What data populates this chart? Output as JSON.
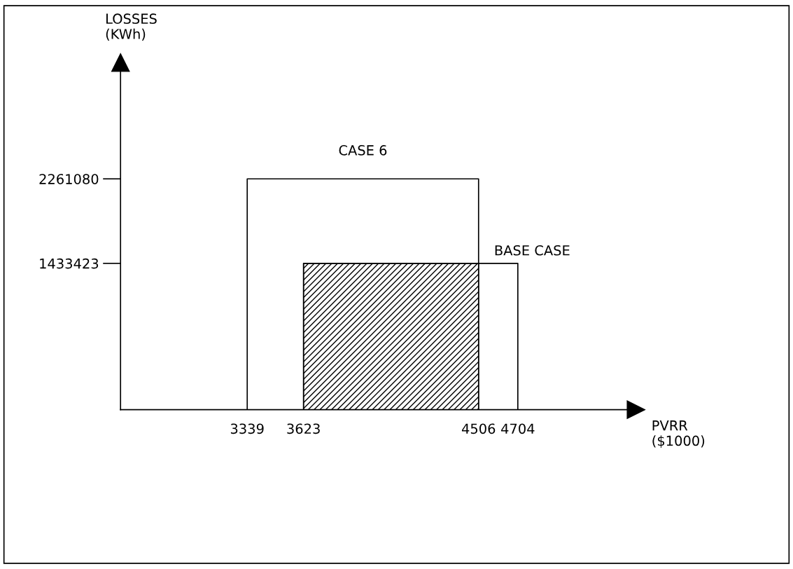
{
  "chart_data": {
    "type": "line",
    "xlabel": "PVRR\n($1000)",
    "ylabel": "LOSSES\n(KWh)",
    "series": [
      {
        "name": "CASE 6",
        "color": "#000000",
        "x": [
          3339,
          3339,
          4506,
          4506
        ],
        "values": [
          0,
          2261080,
          2261080,
          0
        ]
      },
      {
        "name": "BASE CASE",
        "color": "#000000",
        "x": [
          3623,
          3623,
          4704,
          4704
        ],
        "values": [
          0,
          1433423,
          1433423,
          0
        ]
      },
      {
        "type": "area",
        "color": "#000000",
        "x": [
          3623,
          4506
        ],
        "values": [
          1433423,
          1433423
        ]
      }
    ],
    "xlim": [
      2700,
      5300
    ],
    "ylim": [
      0,
      3400000
    ],
    "xticks": [
      3339,
      3623,
      4506,
      4704
    ],
    "yticks": [
      1433423,
      2261080
    ],
    "grid": false,
    "legend": false
  }
}
